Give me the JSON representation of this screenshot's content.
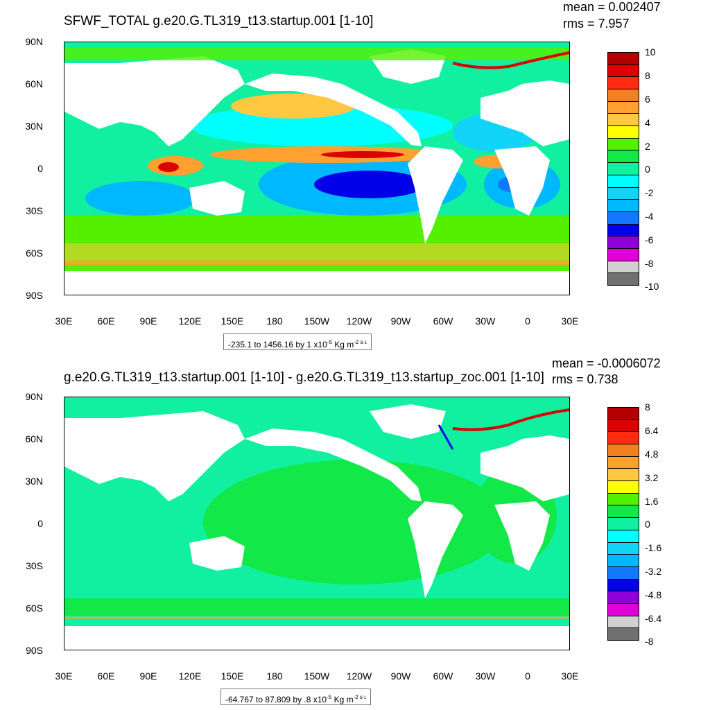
{
  "panels": [
    {
      "title": "SFWF_TOTAL g.e20.G.TL319_t13.startup.001 [1-10]",
      "mean_label": "mean = 0.002407",
      "rms_label": "rms = 7.957",
      "y_labels": [
        "90N",
        "60N",
        "30N",
        "0",
        "30S",
        "60S",
        "90S"
      ],
      "x_labels": [
        "30E",
        "60E",
        "90E",
        "120E",
        "150E",
        "180",
        "150W",
        "120W",
        "90W",
        "60W",
        "30W",
        "0",
        "30E"
      ],
      "colorbar_labels": [
        "10",
        "8",
        "6",
        "4",
        "2",
        "0",
        "-2",
        "-4",
        "-6",
        "-8",
        "-10"
      ],
      "colorbar_colors": [
        "#b40000",
        "#dc0000",
        "#ff2a10",
        "#f08020",
        "#ffa030",
        "#ffc840",
        "#ffff00",
        "#55f000",
        "#12e848",
        "#10f0a0",
        "#00ffff",
        "#12d4f8",
        "#00b8ff",
        "#1478ff",
        "#0000e8",
        "#9000d8",
        "#e000d8",
        "#d0d0d0",
        "#707070"
      ],
      "range_text": "-235.1 to 1456.16 by 1 x10",
      "range_exp": "-5",
      "range_unit": " Kg m",
      "range_unit_exp": "-2 s",
      "range_unit_exp2": "-1"
    },
    {
      "title": "g.e20.G.TL319_t13.startup.001 [1-10] - g.e20.G.TL319_t13.startup_zoc.001 [1-10]",
      "mean_label": "mean = -0.0006072",
      "rms_label": "rms = 0.738",
      "y_labels": [
        "90N",
        "60N",
        "30N",
        "0",
        "30S",
        "60S",
        "90S"
      ],
      "x_labels": [
        "30E",
        "60E",
        "90E",
        "120E",
        "150E",
        "180",
        "150W",
        "120W",
        "90W",
        "60W",
        "30W",
        "0",
        "30E"
      ],
      "colorbar_labels": [
        "8",
        "6.4",
        "4.8",
        "3.2",
        "1.6",
        "0",
        "-1.6",
        "-3.2",
        "-4.8",
        "-6.4",
        "-8"
      ],
      "colorbar_colors": [
        "#b40000",
        "#dc0000",
        "#ff2a10",
        "#f08020",
        "#ffa030",
        "#ffc840",
        "#ffff00",
        "#55f000",
        "#12e848",
        "#10f0a0",
        "#00ffff",
        "#12d4f8",
        "#00b8ff",
        "#1478ff",
        "#0000e8",
        "#9000d8",
        "#e000d8",
        "#d0d0d0",
        "#707070"
      ],
      "range_text": "-64.767 to 87.809 by .8 x10",
      "range_exp": "-5",
      "range_unit": " Kg m",
      "range_unit_exp": "-2 s",
      "range_unit_exp2": "-1"
    }
  ]
}
